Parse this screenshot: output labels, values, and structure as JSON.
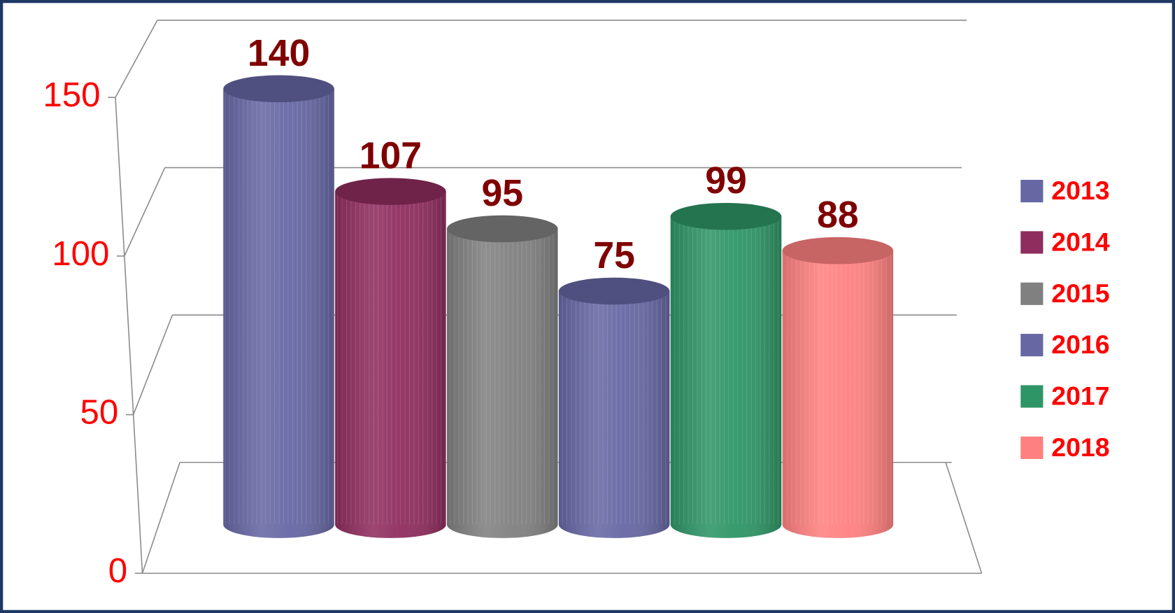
{
  "chart_data": {
    "type": "cylinder",
    "series": [
      {
        "name": "2013",
        "color": "#6667a3",
        "values": [
          140
        ]
      },
      {
        "name": "2014",
        "color": "#8f2d5e",
        "values": [
          107
        ]
      },
      {
        "name": "2015",
        "color": "#808080",
        "values": [
          95
        ]
      },
      {
        "name": "2016",
        "color": "#6667a3",
        "values": [
          75
        ]
      },
      {
        "name": "2017",
        "color": "#2e9566",
        "values": [
          99
        ]
      },
      {
        "name": "2018",
        "color": "#ff8080",
        "values": [
          88
        ]
      }
    ],
    "ylim": [
      0,
      150
    ],
    "yticks": [
      0,
      50,
      100,
      150
    ],
    "grid": true,
    "legend": "right"
  }
}
